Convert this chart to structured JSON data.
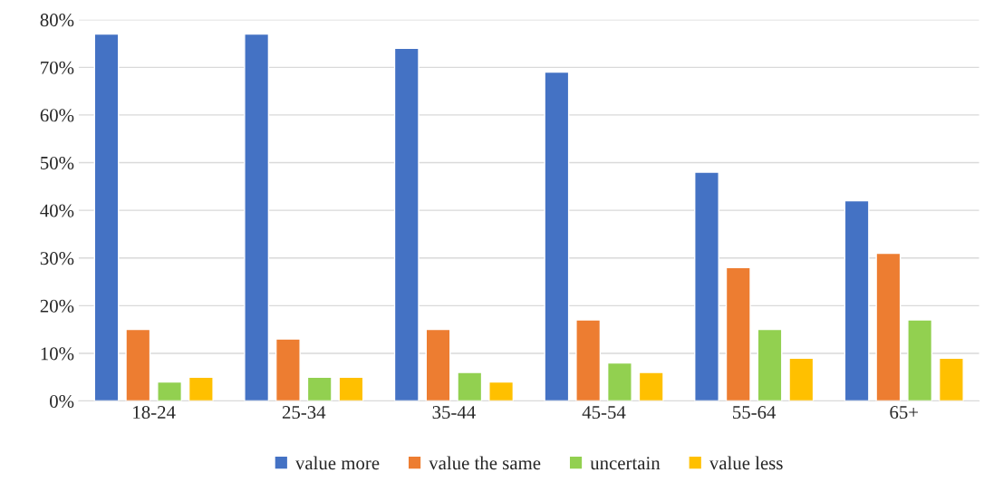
{
  "chart_data": {
    "type": "bar",
    "categories": [
      "18-24",
      "25-34",
      "35-44",
      "45-54",
      "55-64",
      "65+"
    ],
    "series": [
      {
        "name": "value more",
        "color": "#4472c4",
        "values": [
          77,
          77,
          74,
          69,
          48,
          42
        ]
      },
      {
        "name": "value the same",
        "color": "#ed7d31",
        "values": [
          15,
          13,
          15,
          17,
          28,
          31
        ]
      },
      {
        "name": "uncertain",
        "color": "#92d050",
        "values": [
          4,
          5,
          6,
          8,
          15,
          17
        ]
      },
      {
        "name": "value less",
        "color": "#ffc000",
        "values": [
          5,
          5,
          4,
          6,
          9,
          9
        ]
      }
    ],
    "ylim": [
      0,
      80
    ],
    "yticks": [
      {
        "value": 0,
        "label": "0%"
      },
      {
        "value": 10,
        "label": "10%"
      },
      {
        "value": 20,
        "label": "20%"
      },
      {
        "value": 30,
        "label": "30%"
      },
      {
        "value": 40,
        "label": "40%"
      },
      {
        "value": 50,
        "label": "50%"
      },
      {
        "value": 60,
        "label": "60%"
      },
      {
        "value": 70,
        "label": "70%"
      },
      {
        "value": 80,
        "label": "80%"
      }
    ],
    "grid": "y",
    "legend": "bottom"
  }
}
